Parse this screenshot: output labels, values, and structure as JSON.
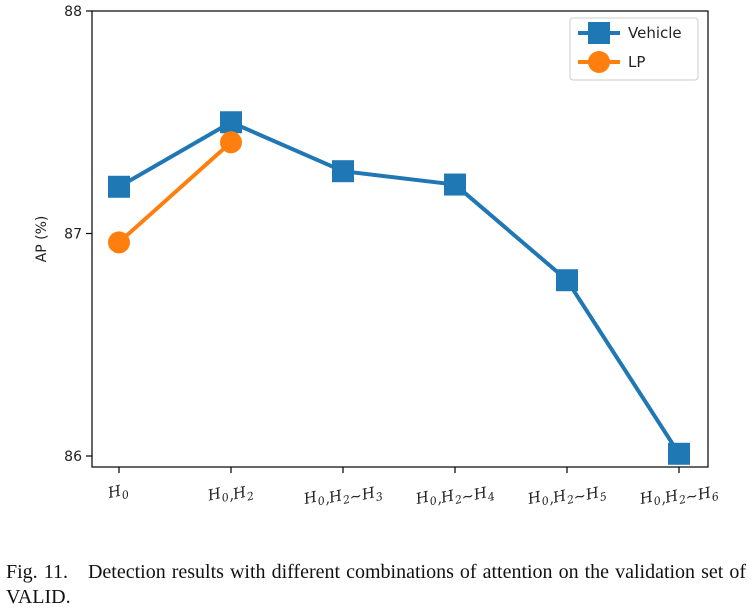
{
  "chart_data": {
    "type": "line",
    "categories": [
      "H0",
      "H0,H2",
      "H0,H2~H3",
      "H0,H2~H4",
      "H0,H2~H5",
      "H0,H2~H6"
    ],
    "tick_labels": [
      {
        "parts": [
          [
            "H",
            "0"
          ]
        ]
      },
      {
        "parts": [
          [
            "H",
            "0"
          ],
          [
            ",H",
            "2"
          ]
        ]
      },
      {
        "parts": [
          [
            "H",
            "0"
          ],
          [
            ",H",
            "2"
          ],
          [
            "~H",
            "3"
          ]
        ]
      },
      {
        "parts": [
          [
            "H",
            "0"
          ],
          [
            ",H",
            "2"
          ],
          [
            "~H",
            "4"
          ]
        ]
      },
      {
        "parts": [
          [
            "H",
            "0"
          ],
          [
            ",H",
            "2"
          ],
          [
            "~H",
            "5"
          ]
        ]
      },
      {
        "parts": [
          [
            "H",
            "0"
          ],
          [
            ",H",
            "2"
          ],
          [
            "~H",
            "6"
          ]
        ]
      }
    ],
    "series": [
      {
        "name": "Vehicle",
        "color": "#1f77b4",
        "marker": "square",
        "values": [
          87.21,
          87.5,
          87.28,
          87.22,
          86.79,
          86.01
        ]
      },
      {
        "name": "LP",
        "color": "#ff7f0e",
        "marker": "circle",
        "values": [
          86.96,
          87.41,
          null,
          null,
          null,
          null
        ]
      }
    ],
    "ylabel": "AP (%)",
    "ylim": [
      86,
      88
    ],
    "yticks": [
      "86",
      "87",
      "88"
    ],
    "grid": false,
    "legend_position": "top-right"
  },
  "caption": "Fig. 11. Detection results with different combinations of attention on the validation set of VALID."
}
